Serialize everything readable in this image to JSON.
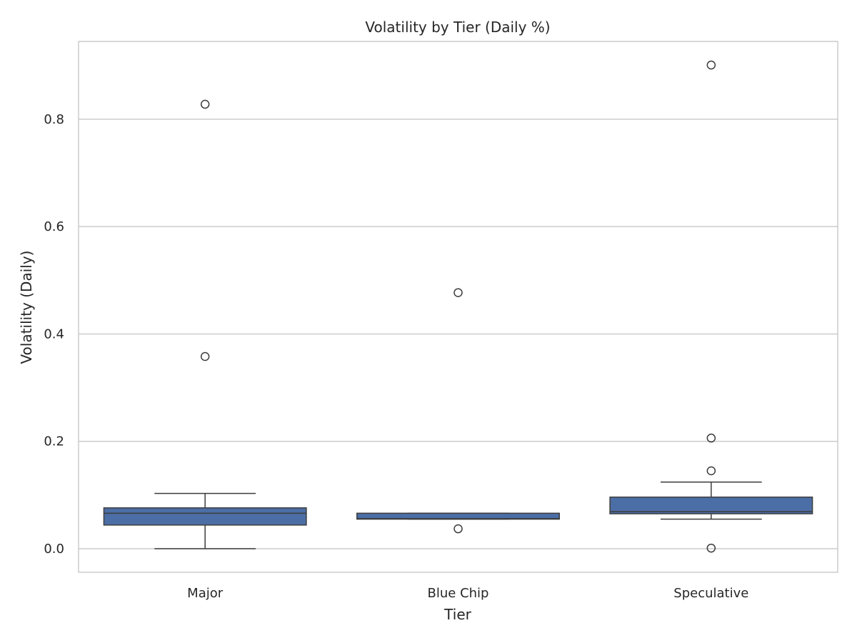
{
  "chart_data": {
    "type": "box",
    "title": "Volatility by Tier (Daily %)",
    "xlabel": "Tier",
    "ylabel": "Volatility (Daily)",
    "ylim": [
      -0.044,
      0.945
    ],
    "yticks": [
      0.0,
      0.2,
      0.4,
      0.6,
      0.8
    ],
    "ytick_labels": [
      "0.0",
      "0.2",
      "0.4",
      "0.6",
      "0.8"
    ],
    "grid": true,
    "colors": {
      "box": "#4c6ea6",
      "line": "#3d3d3d",
      "grid": "#cccccc",
      "frame": "#cccccc"
    },
    "categories": [
      "Major",
      "Blue Chip",
      "Speculative"
    ],
    "boxes": [
      {
        "category": "Major",
        "whisker_low": 0.0,
        "q1": 0.044,
        "median": 0.066,
        "q3": 0.076,
        "whisker_high": 0.103,
        "outliers": [
          0.358,
          0.828
        ]
      },
      {
        "category": "Blue Chip",
        "whisker_low": 0.055,
        "q1": 0.055,
        "median": 0.056,
        "q3": 0.066,
        "whisker_high": 0.066,
        "outliers": [
          0.037,
          0.477
        ]
      },
      {
        "category": "Speculative",
        "whisker_low": 0.055,
        "q1": 0.065,
        "median": 0.069,
        "q3": 0.096,
        "whisker_high": 0.124,
        "outliers": [
          0.001,
          0.145,
          0.206,
          0.901
        ]
      }
    ]
  }
}
